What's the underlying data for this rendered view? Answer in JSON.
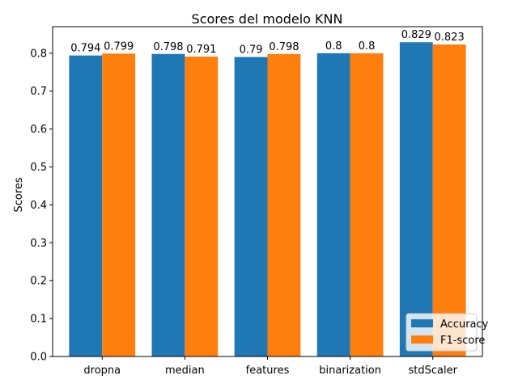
{
  "chart_data": {
    "type": "bar",
    "title": "Scores del modelo KNN",
    "xlabel": "",
    "ylabel": "Scores",
    "categories": [
      "dropna",
      "median",
      "features",
      "binarization",
      "stdScaler"
    ],
    "series": [
      {
        "name": "Accuracy",
        "values": [
          0.794,
          0.798,
          0.79,
          0.8,
          0.829
        ],
        "labels": [
          "0.794",
          "0.798",
          "0.79",
          "0.8",
          "0.829"
        ],
        "color": "#1f77b4"
      },
      {
        "name": "F1-score",
        "values": [
          0.799,
          0.791,
          0.798,
          0.8,
          0.823
        ],
        "labels": [
          "0.799",
          "0.791",
          "0.798",
          "0.8",
          "0.823"
        ],
        "color": "#ff7f0e"
      }
    ],
    "ylim": [
      0,
      0.87
    ],
    "yticks": [
      "0.0",
      "0.1",
      "0.2",
      "0.3",
      "0.4",
      "0.5",
      "0.6",
      "0.7",
      "0.8"
    ],
    "grid": false,
    "legend_position": "lower-right"
  }
}
